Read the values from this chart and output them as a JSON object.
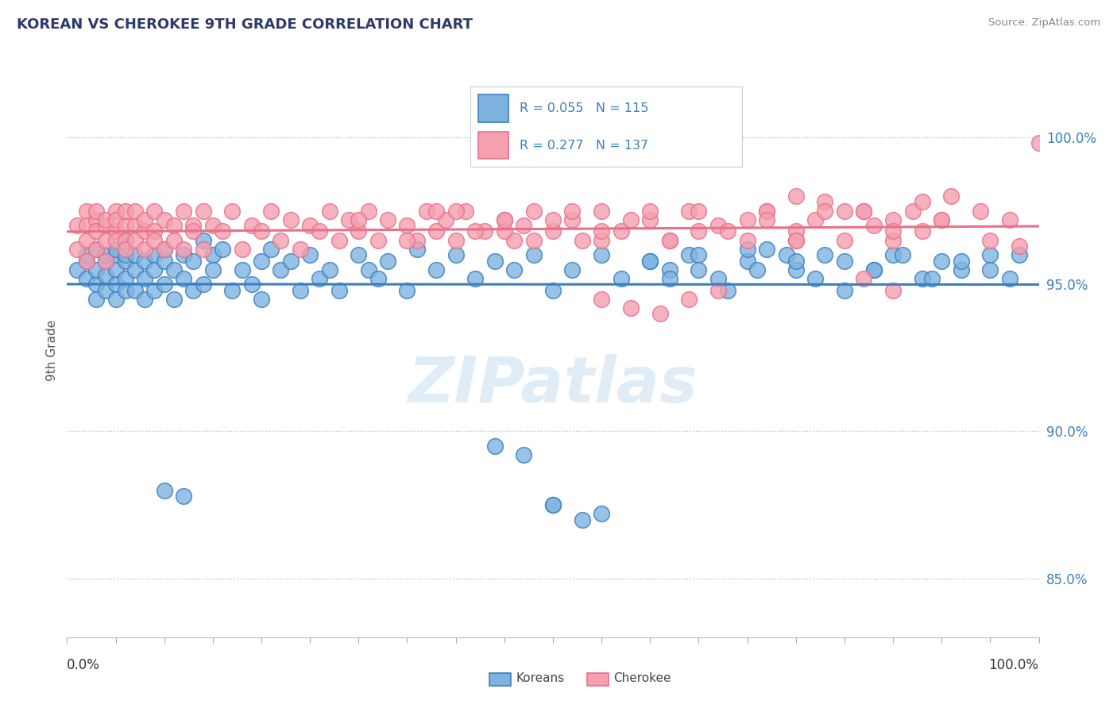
{
  "title": "KOREAN VS CHEROKEE 9TH GRADE CORRELATION CHART",
  "source": "Source: ZipAtlas.com",
  "ylabel": "9th Grade",
  "ytick_labels": [
    "85.0%",
    "90.0%",
    "95.0%",
    "100.0%"
  ],
  "ytick_values": [
    0.85,
    0.9,
    0.95,
    1.0
  ],
  "xlim": [
    0.0,
    1.0
  ],
  "ylim": [
    0.83,
    1.025
  ],
  "korean_color": "#7EB3E0",
  "cherokee_color": "#F4A0B0",
  "korean_line_color": "#3A7FC1",
  "cherokee_line_color": "#E8708A",
  "R_korean": 0.055,
  "N_korean": 115,
  "R_cherokee": 0.277,
  "N_cherokee": 137,
  "legend_label_korean": "Koreans",
  "legend_label_cherokee": "Cherokee",
  "watermark": "ZIPatlas",
  "korean_x": [
    0.01,
    0.02,
    0.02,
    0.02,
    0.03,
    0.03,
    0.03,
    0.03,
    0.04,
    0.04,
    0.04,
    0.04,
    0.05,
    0.05,
    0.05,
    0.05,
    0.05,
    0.06,
    0.06,
    0.06,
    0.06,
    0.06,
    0.07,
    0.07,
    0.07,
    0.08,
    0.08,
    0.08,
    0.09,
    0.09,
    0.09,
    0.1,
    0.1,
    0.1,
    0.11,
    0.11,
    0.12,
    0.12,
    0.13,
    0.13,
    0.14,
    0.14,
    0.15,
    0.15,
    0.16,
    0.17,
    0.18,
    0.19,
    0.2,
    0.2,
    0.21,
    0.22,
    0.23,
    0.24,
    0.25,
    0.26,
    0.27,
    0.28,
    0.3,
    0.31,
    0.32,
    0.33,
    0.35,
    0.36,
    0.38,
    0.4,
    0.42,
    0.44,
    0.46,
    0.48,
    0.5,
    0.52,
    0.55,
    0.57,
    0.6,
    0.62,
    0.64,
    0.67,
    0.7,
    0.72,
    0.75,
    0.78,
    0.8,
    0.83,
    0.85,
    0.88,
    0.9,
    0.92,
    0.95,
    0.97,
    0.44,
    0.47,
    0.5,
    0.53,
    0.62,
    0.65,
    0.68,
    0.71,
    0.74,
    0.77,
    0.8,
    0.83,
    0.86,
    0.89,
    0.92,
    0.95,
    0.98,
    0.5,
    0.55,
    0.6,
    0.65,
    0.7,
    0.75,
    0.1,
    0.12
  ],
  "korean_y": [
    0.955,
    0.958,
    0.952,
    0.96,
    0.95,
    0.955,
    0.962,
    0.945,
    0.958,
    0.96,
    0.948,
    0.953,
    0.955,
    0.96,
    0.95,
    0.945,
    0.962,
    0.958,
    0.952,
    0.96,
    0.948,
    0.965,
    0.955,
    0.948,
    0.96,
    0.952,
    0.958,
    0.945,
    0.96,
    0.955,
    0.948,
    0.958,
    0.962,
    0.95,
    0.955,
    0.945,
    0.96,
    0.952,
    0.958,
    0.948,
    0.965,
    0.95,
    0.96,
    0.955,
    0.962,
    0.948,
    0.955,
    0.95,
    0.958,
    0.945,
    0.962,
    0.955,
    0.958,
    0.948,
    0.96,
    0.952,
    0.955,
    0.948,
    0.96,
    0.955,
    0.952,
    0.958,
    0.948,
    0.962,
    0.955,
    0.96,
    0.952,
    0.958,
    0.955,
    0.96,
    0.948,
    0.955,
    0.96,
    0.952,
    0.958,
    0.955,
    0.96,
    0.952,
    0.958,
    0.962,
    0.955,
    0.96,
    0.948,
    0.955,
    0.96,
    0.952,
    0.958,
    0.955,
    0.96,
    0.952,
    0.895,
    0.892,
    0.875,
    0.87,
    0.952,
    0.96,
    0.948,
    0.955,
    0.96,
    0.952,
    0.958,
    0.955,
    0.96,
    0.952,
    0.958,
    0.955,
    0.96,
    0.875,
    0.872,
    0.958,
    0.955,
    0.962,
    0.958,
    0.88,
    0.878
  ],
  "cherokee_x": [
    0.01,
    0.01,
    0.02,
    0.02,
    0.02,
    0.02,
    0.03,
    0.03,
    0.03,
    0.03,
    0.04,
    0.04,
    0.04,
    0.04,
    0.05,
    0.05,
    0.05,
    0.05,
    0.06,
    0.06,
    0.06,
    0.06,
    0.07,
    0.07,
    0.07,
    0.08,
    0.08,
    0.08,
    0.09,
    0.09,
    0.09,
    0.1,
    0.1,
    0.11,
    0.11,
    0.12,
    0.12,
    0.13,
    0.13,
    0.14,
    0.14,
    0.15,
    0.16,
    0.17,
    0.18,
    0.19,
    0.2,
    0.21,
    0.22,
    0.23,
    0.24,
    0.25,
    0.26,
    0.27,
    0.28,
    0.29,
    0.3,
    0.31,
    0.32,
    0.33,
    0.35,
    0.36,
    0.37,
    0.38,
    0.39,
    0.4,
    0.41,
    0.43,
    0.45,
    0.46,
    0.47,
    0.48,
    0.5,
    0.52,
    0.53,
    0.55,
    0.57,
    0.6,
    0.62,
    0.64,
    0.67,
    0.7,
    0.72,
    0.75,
    0.77,
    0.8,
    0.82,
    0.83,
    0.85,
    0.87,
    0.88,
    0.9,
    0.72,
    0.75,
    0.78,
    0.82,
    0.85,
    0.88,
    0.91,
    0.94,
    0.97,
    1.0,
    0.4,
    0.45,
    0.5,
    0.55,
    0.6,
    0.65,
    0.7,
    0.75,
    0.8,
    0.85,
    0.9,
    0.95,
    0.98,
    0.3,
    0.35,
    0.38,
    0.42,
    0.45,
    0.48,
    0.52,
    0.55,
    0.58,
    0.62,
    0.65,
    0.68,
    0.72,
    0.75,
    0.78,
    0.82,
    0.85,
    0.55,
    0.58,
    0.61,
    0.64,
    0.67
  ],
  "cherokee_y": [
    0.97,
    0.962,
    0.975,
    0.965,
    0.97,
    0.958,
    0.972,
    0.968,
    0.975,
    0.962,
    0.97,
    0.965,
    0.972,
    0.958,
    0.975,
    0.968,
    0.965,
    0.972,
    0.97,
    0.965,
    0.975,
    0.962,
    0.97,
    0.965,
    0.975,
    0.968,
    0.972,
    0.962,
    0.975,
    0.968,
    0.965,
    0.972,
    0.962,
    0.97,
    0.965,
    0.975,
    0.962,
    0.97,
    0.968,
    0.975,
    0.962,
    0.97,
    0.968,
    0.975,
    0.962,
    0.97,
    0.968,
    0.975,
    0.965,
    0.972,
    0.962,
    0.97,
    0.968,
    0.975,
    0.965,
    0.972,
    0.968,
    0.975,
    0.965,
    0.972,
    0.97,
    0.965,
    0.975,
    0.968,
    0.972,
    0.965,
    0.975,
    0.968,
    0.972,
    0.965,
    0.97,
    0.975,
    0.968,
    0.972,
    0.965,
    0.975,
    0.968,
    0.972,
    0.965,
    0.975,
    0.97,
    0.965,
    0.975,
    0.968,
    0.972,
    0.965,
    0.975,
    0.97,
    0.965,
    0.975,
    0.968,
    0.972,
    0.975,
    0.98,
    0.978,
    0.975,
    0.972,
    0.978,
    0.98,
    0.975,
    0.972,
    0.998,
    0.975,
    0.968,
    0.972,
    0.965,
    0.975,
    0.968,
    0.972,
    0.965,
    0.975,
    0.968,
    0.972,
    0.965,
    0.963,
    0.972,
    0.965,
    0.975,
    0.968,
    0.972,
    0.965,
    0.975,
    0.968,
    0.972,
    0.965,
    0.975,
    0.968,
    0.972,
    0.965,
    0.975,
    0.952,
    0.948,
    0.945,
    0.942,
    0.94,
    0.945,
    0.948
  ]
}
